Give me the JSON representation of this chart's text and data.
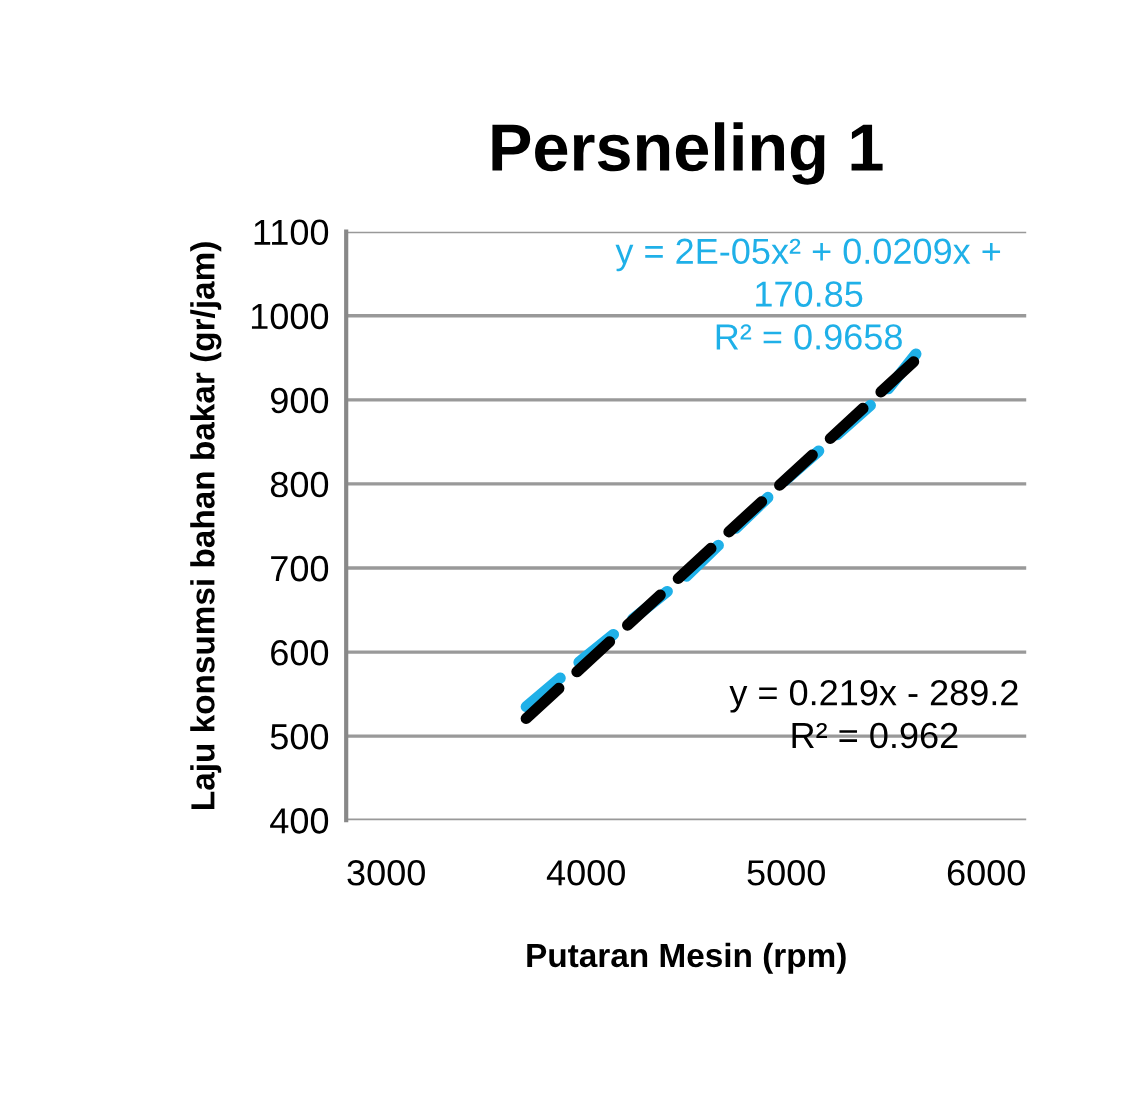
{
  "chart_data": {
    "type": "line",
    "title": "Persneling 1",
    "xlabel": "Putaran Mesin (rpm)",
    "ylabel": "Laju konsumsi bahan bakar (gr/jam)",
    "series": [
      {
        "color": "#1fb0e8",
        "x": [
          3700,
          4000,
          4500,
          5000,
          5500,
          5700
        ],
        "values": [
          535,
          595,
          690,
          805,
          910,
          970
        ]
      },
      {
        "color": "#000000",
        "x": [
          3700,
          5700
        ],
        "values": [
          521,
          959
        ]
      }
    ],
    "annotations": [
      "y = 2E-05x² + 0.0209x +\n170.85\nR² = 0.9658",
      "y = 0.219x - 289.2\nR² = 0.962"
    ],
    "xlim": [
      2800,
      6200
    ],
    "xticks": [
      3000,
      4000,
      5000,
      6000
    ],
    "ylim": [
      400,
      1100
    ],
    "yticks": [
      400,
      500,
      600,
      700,
      800,
      900,
      1000,
      1100
    ],
    "grid": "y",
    "line_style": "dashed",
    "marker": "none"
  }
}
